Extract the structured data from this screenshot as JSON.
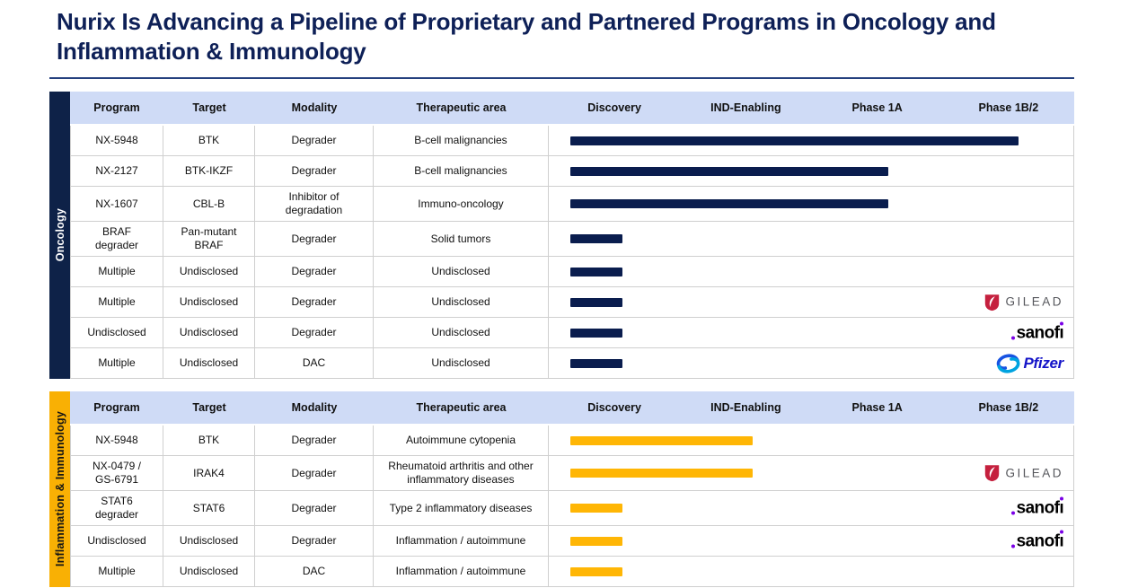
{
  "title": "Nurix Is Advancing a Pipeline of Proprietary and Partnered Programs in Oncology and Inflammation & Immunology",
  "table": {
    "columns": [
      "Program",
      "Target",
      "Modality",
      "Therapeutic area"
    ],
    "phases": [
      "Discovery",
      "IND-Enabling",
      "Phase 1A",
      "Phase 1B/2"
    ]
  },
  "partners": {
    "gilead": "GILEAD",
    "sanofi": "sanofi",
    "pfizer": "Pfizer"
  },
  "colors": {
    "title": "#0E2057",
    "rule": "#24407E",
    "header_bg": "#CFDBF6",
    "border": "#CFCFCF",
    "oncology_sidebar": "#0E2248",
    "oncology_bar": "#0A1D4E",
    "inflammation_sidebar": "#F9B004",
    "inflammation_bar": "#FFB605",
    "gilead_red": "#C5203E",
    "gilead_text": "#55565B",
    "sanofi_black": "#000000",
    "sanofi_purple": "#7A00E6",
    "pfizer_dark": "#1414C8",
    "pfizer_light": "#00A3E0",
    "pfizer_mid": "#1753E2"
  },
  "sections": [
    {
      "label": "Oncology",
      "theme": "oncology",
      "rows": [
        {
          "program": "NX-5948",
          "target": "BTK",
          "modality": "Degrader",
          "area": "B-cell malignancies",
          "bar_pct": 85.5,
          "partner": null
        },
        {
          "program": "NX-2127",
          "target": "BTK-IKZF",
          "modality": "Degrader",
          "area": "B-cell malignancies",
          "bar_pct": 60.7,
          "partner": null
        },
        {
          "program": "NX-1607",
          "target": "CBL-B",
          "modality": "Inhibitor of degradation",
          "area": "Immuno-oncology",
          "bar_pct": 60.7,
          "partner": null
        },
        {
          "program": "BRAF degrader",
          "target": "Pan-mutant BRAF",
          "modality": "Degrader",
          "area": "Solid tumors",
          "bar_pct": 10,
          "partner": null
        },
        {
          "program": "Multiple",
          "target": "Undisclosed",
          "modality": "Degrader",
          "area": "Undisclosed",
          "bar_pct": 10,
          "partner": null
        },
        {
          "program": "Multiple",
          "target": "Undisclosed",
          "modality": "Degrader",
          "area": "Undisclosed",
          "bar_pct": 10,
          "partner": "gilead"
        },
        {
          "program": "Undisclosed",
          "target": "Undisclosed",
          "modality": "Degrader",
          "area": "Undisclosed",
          "bar_pct": 10,
          "partner": "sanofi"
        },
        {
          "program": "Multiple",
          "target": "Undisclosed",
          "modality": "DAC",
          "area": "Undisclosed",
          "bar_pct": 10,
          "partner": "pfizer"
        }
      ]
    },
    {
      "label": "Inflammation & Immunology",
      "theme": "inflammation",
      "rows": [
        {
          "program": "NX-5948",
          "target": "BTK",
          "modality": "Degrader",
          "area": "Autoimmune cytopenia",
          "bar_pct": 34.7,
          "partner": null
        },
        {
          "program": "NX-0479 / GS-6791",
          "target": "IRAK4",
          "modality": "Degrader",
          "area": "Rheumatoid arthritis and other inflammatory diseases",
          "bar_pct": 34.7,
          "partner": "gilead"
        },
        {
          "program": "STAT6 degrader",
          "target": "STAT6",
          "modality": "Degrader",
          "area": "Type 2 inflammatory diseases",
          "bar_pct": 10,
          "partner": "sanofi"
        },
        {
          "program": "Undisclosed",
          "target": "Undisclosed",
          "modality": "Degrader",
          "area": "Inflammation / autoimmune",
          "bar_pct": 10,
          "partner": "sanofi"
        },
        {
          "program": "Multiple",
          "target": "Undisclosed",
          "modality": "DAC",
          "area": "Inflammation / autoimmune",
          "bar_pct": 10,
          "partner": null
        }
      ]
    }
  ]
}
